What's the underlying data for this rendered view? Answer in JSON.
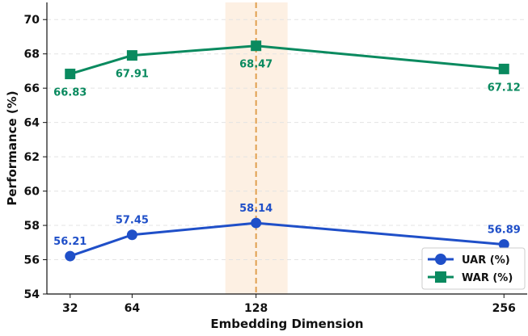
{
  "chart_data": {
    "type": "line",
    "xlabel": "Embedding Dimension",
    "ylabel": "Performance (%)",
    "x": [
      32,
      64,
      128,
      256
    ],
    "x_tick_labels": [
      "32",
      "64",
      "128",
      "256"
    ],
    "ylim": [
      54,
      71
    ],
    "y_ticks": [
      54,
      56,
      58,
      60,
      62,
      64,
      66,
      68,
      70
    ],
    "grid": "horizontal dashed",
    "highlight": {
      "x": 128,
      "band": "shaded vertical band",
      "line_color": "#e0a050",
      "band_color": "#fdf0e3"
    },
    "series": [
      {
        "name": "UAR (%)",
        "marker": "circle",
        "color": "#1f4fc8",
        "values": [
          56.21,
          57.45,
          58.14,
          56.89
        ],
        "labels": [
          "56.21",
          "57.45",
          "58.14",
          "56.89"
        ],
        "label_position": "above"
      },
      {
        "name": "WAR (%)",
        "marker": "square",
        "color": "#0a8a5f",
        "values": [
          66.83,
          67.91,
          68.47,
          67.12
        ],
        "labels": [
          "66.83",
          "67.91",
          "68.47",
          "67.12"
        ],
        "label_position": "below"
      }
    ],
    "legend_position": "bottom-right"
  }
}
